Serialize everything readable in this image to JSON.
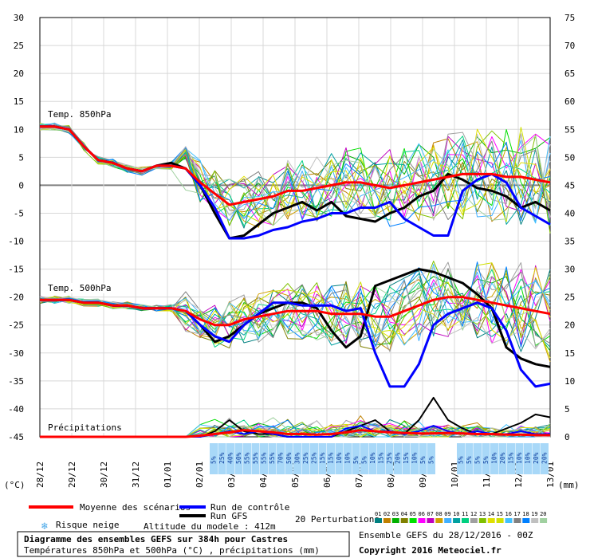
{
  "chart_data": {
    "type": "line",
    "title": "Diagramme des ensembles GEFS sur 384h pour Castres",
    "subtitle": "Températures 850hPa et 500hPa (°C) , précipitations (mm)",
    "left_axis": {
      "unit": "(°C)",
      "ticks": [
        "30",
        "25",
        "20",
        "15",
        "10",
        "5",
        "0",
        "-5",
        "-10",
        "-15",
        "-20",
        "-25",
        "-30",
        "-35",
        "-40",
        "-45"
      ]
    },
    "right_axis": {
      "unit": "(mm)",
      "ticks": [
        "75",
        "70",
        "65",
        "60",
        "55",
        "50",
        "45",
        "40",
        "35",
        "30",
        "25",
        "20",
        "15",
        "10",
        "5",
        "0"
      ]
    },
    "x_ticks": [
      "28/12",
      "29/12",
      "30/12",
      "31/12",
      "01/01",
      "02/01",
      "03/01",
      "04/01",
      "05/01",
      "06/01",
      "07/01",
      "08/01",
      "09/01",
      "10/01",
      "11/01",
      "12/01",
      "13/01"
    ],
    "panel_labels": [
      "Temp. 850hPa",
      "Temp. 500hPa",
      "Précipitations"
    ],
    "snow_risk_percent": [
      [
        "5%",
        "25%",
        "40%",
        "50%",
        "55%",
        "55%",
        "55%",
        "55%",
        "70%",
        "50%",
        "30%",
        "25%",
        "25%",
        "15%",
        "15%",
        "10%",
        "10%",
        "5%",
        "5%",
        "10%",
        "15%",
        "25%",
        "20%",
        "15%",
        "10%",
        "5%",
        "5%"
      ],
      [
        "5%",
        "5%",
        "5%",
        "5%",
        "10%",
        "20%",
        "15%",
        "10%",
        "10%",
        "20%",
        "20%"
      ]
    ],
    "legend": {
      "mean": "Moyenne des scénarios",
      "control": "Run de contrôle",
      "gfs": "Run GFS",
      "snow": "Risque neige",
      "altitude": "Altitude du modele : 412m",
      "perturbations_label": "20 Perturbations",
      "perturbation_numbers": [
        "01",
        "02",
        "03",
        "04",
        "05",
        "06",
        "07",
        "08",
        "09",
        "10",
        "11",
        "12",
        "13",
        "14",
        "15",
        "16",
        "17",
        "18",
        "19",
        "20"
      ],
      "perturbation_colors": [
        "#008080",
        "#c08000",
        "#00b000",
        "#808000",
        "#00e000",
        "#ff00ff",
        "#c000c0",
        "#d0a000",
        "#40b0ff",
        "#00a0a0",
        "#00d080",
        "#a0a0a0",
        "#80c000",
        "#e0e000",
        "#d0e000",
        "#40c0ff",
        "#808080",
        "#0080ff",
        "#c0c0c0",
        "#a0d0a0"
      ]
    },
    "run_info": "Ensemble GEFS du 28/12/2016 - 00Z",
    "copyright": "Copyright 2016 Meteociel.fr",
    "series": {
      "t850_mean": [
        10.5,
        10.5,
        10,
        7,
        4.5,
        4,
        3,
        2.5,
        3.5,
        3.5,
        3,
        0.5,
        -1.5,
        -3.5,
        -3,
        -2.5,
        -2,
        -1,
        -1,
        -0.5,
        0,
        0.5,
        0.5,
        0,
        -0.5,
        0,
        0.5,
        1,
        1.5,
        2,
        2,
        2,
        1.5,
        1.5,
        1,
        0.5
      ],
      "t850_control": [
        10.5,
        10.5,
        10,
        7,
        4.5,
        4,
        3,
        2.5,
        3.5,
        3.5,
        3,
        0,
        -4,
        -9.5,
        -9.5,
        -9,
        -8,
        -7.5,
        -6.5,
        -6,
        -5,
        -5,
        -4,
        -4,
        -3,
        -6,
        -7.5,
        -9,
        -9,
        -1,
        1,
        2,
        0.5,
        -4,
        -5.5,
        -7
      ],
      "t850_gfs": [
        10.5,
        10.5,
        10,
        7,
        4.5,
        4,
        3,
        2.5,
        3.5,
        4,
        3,
        0,
        -5,
        -9.5,
        -9,
        -7,
        -5,
        -4,
        -3,
        -4.5,
        -3,
        -5.5,
        -6,
        -6.5,
        -5,
        -4,
        -2,
        -1,
        2,
        1,
        -0.5,
        -1,
        -2,
        -4,
        -3,
        -4.5
      ],
      "t500_mean": [
        -20.5,
        -20.5,
        -20.5,
        -21,
        -21,
        -21.5,
        -21.5,
        -22,
        -22,
        -22,
        -22.5,
        -24,
        -25,
        -25,
        -24,
        -23.5,
        -23,
        -22.5,
        -22.5,
        -22.5,
        -23,
        -23,
        -23,
        -23.5,
        -23.5,
        -22.5,
        -21.5,
        -20.5,
        -20,
        -20,
        -20.5,
        -21,
        -21.5,
        -22,
        -22.5,
        -23
      ],
      "t500_control": [
        -20.5,
        -20.5,
        -20.5,
        -21,
        -21,
        -21.5,
        -21.5,
        -22,
        -22,
        -22,
        -22.5,
        -25,
        -27,
        -28,
        -25,
        -23,
        -21,
        -21,
        -21.5,
        -21.5,
        -21.5,
        -22.5,
        -22,
        -30,
        -36,
        -36,
        -32,
        -25,
        -23,
        -22,
        -21,
        -22,
        -26,
        -33,
        -36,
        -35.5
      ],
      "t500_gfs": [
        -20.5,
        -20.5,
        -20.5,
        -21,
        -21,
        -21.5,
        -21.5,
        -22,
        -22,
        -22,
        -22.5,
        -25,
        -28,
        -27,
        -25,
        -23,
        -22,
        -21,
        -21,
        -22,
        -26,
        -29,
        -27,
        -18,
        -17,
        -16,
        -15,
        -15.5,
        -16.5,
        -17.5,
        -19.5,
        -22,
        -29,
        -31,
        -32,
        -32.5
      ],
      "precip_mean": [
        0,
        0,
        0,
        0,
        0,
        0,
        0,
        0,
        0,
        0,
        0,
        0.2,
        0.5,
        0.8,
        1.2,
        1,
        0.8,
        0.5,
        0.5,
        0.4,
        0.5,
        0.8,
        1.2,
        1,
        0.8,
        0.7,
        0.6,
        0.6,
        0.7,
        0.6,
        0.5,
        0.5,
        0.4,
        0.4,
        0.3,
        0.3
      ],
      "precip_gfs": [
        0,
        0,
        0,
        0,
        0,
        0,
        0,
        0,
        0,
        0,
        0,
        0,
        1,
        3,
        1,
        0.5,
        0.5,
        0,
        0,
        0,
        0,
        1,
        2,
        3,
        1,
        0.5,
        3,
        7,
        3,
        1.5,
        0.5,
        0.5,
        1.5,
        2.5,
        4,
        3.5
      ],
      "precip_control": [
        0,
        0,
        0,
        0,
        0,
        0,
        0,
        0,
        0,
        0,
        0,
        0,
        0.5,
        1,
        0.5,
        1,
        0.5,
        0,
        0,
        0,
        0,
        1.5,
        2,
        1,
        1,
        0.5,
        1,
        2,
        1,
        0.5,
        1,
        0.5,
        0.5,
        1,
        0.5,
        0.5
      ]
    }
  }
}
